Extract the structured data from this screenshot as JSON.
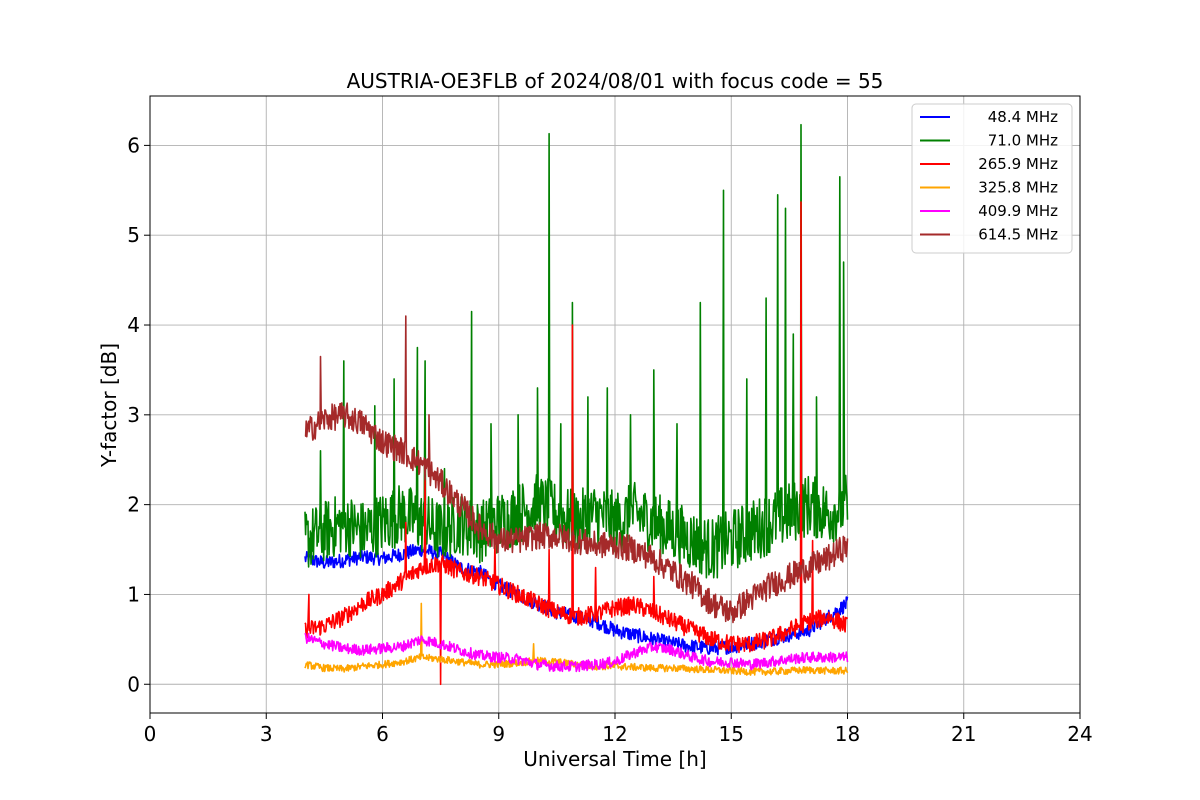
{
  "chart_data": {
    "type": "line",
    "title": "AUSTRIA-OE3FLB of 2024/08/01 with focus code = 55",
    "xlabel": "Universal Time [h]",
    "ylabel": "Y-factor [dB]",
    "xlim": [
      0,
      24
    ],
    "ylim": [
      -0.32,
      6.55
    ],
    "xticks": [
      0,
      3,
      6,
      9,
      12,
      15,
      18,
      21,
      24
    ],
    "yticks": [
      0,
      1,
      2,
      3,
      4,
      5,
      6
    ],
    "grid": true,
    "legend_position": "top-right",
    "series": [
      {
        "name": "48.4 MHz",
        "color": "#0000ff",
        "x": [
          4.0,
          4.5,
          5.0,
          5.5,
          6.0,
          6.5,
          7.0,
          7.5,
          8.0,
          8.5,
          9.0,
          9.5,
          10.0,
          10.5,
          11.0,
          11.5,
          12.0,
          12.5,
          13.0,
          13.5,
          14.0,
          14.5,
          15.0,
          15.5,
          16.0,
          16.5,
          17.0,
          17.5,
          18.0
        ],
        "y": [
          1.4,
          1.35,
          1.38,
          1.42,
          1.4,
          1.45,
          1.5,
          1.45,
          1.3,
          1.25,
          1.1,
          1.0,
          0.9,
          0.8,
          0.75,
          0.7,
          0.6,
          0.55,
          0.5,
          0.45,
          0.42,
          0.4,
          0.42,
          0.45,
          0.5,
          0.55,
          0.6,
          0.75,
          0.9
        ],
        "noise": 0.08
      },
      {
        "name": "71.0 MHz",
        "color": "#008000",
        "x": [
          4.0,
          4.5,
          5.0,
          5.5,
          6.0,
          6.5,
          7.0,
          7.5,
          8.0,
          8.5,
          9.0,
          9.5,
          10.0,
          10.5,
          11.0,
          11.5,
          12.0,
          12.5,
          13.0,
          13.5,
          14.0,
          14.5,
          15.0,
          15.5,
          16.0,
          16.5,
          17.0,
          17.5,
          18.0
        ],
        "y": [
          1.6,
          1.7,
          1.8,
          1.7,
          1.8,
          1.9,
          1.8,
          1.7,
          1.8,
          1.7,
          1.8,
          1.9,
          2.0,
          1.9,
          1.8,
          1.9,
          1.8,
          1.9,
          1.8,
          1.7,
          1.6,
          1.5,
          1.6,
          1.7,
          1.8,
          1.9,
          2.0,
          1.9,
          2.0
        ],
        "noise": 0.35,
        "spikes": [
          [
            4.4,
            2.6
          ],
          [
            5.0,
            3.6
          ],
          [
            5.8,
            3.1
          ],
          [
            6.3,
            3.4
          ],
          [
            6.9,
            3.75
          ],
          [
            7.1,
            3.6
          ],
          [
            7.6,
            2.4
          ],
          [
            8.3,
            4.15
          ],
          [
            8.8,
            2.9
          ],
          [
            9.5,
            3.0
          ],
          [
            10.0,
            3.3
          ],
          [
            10.3,
            6.13
          ],
          [
            10.6,
            2.9
          ],
          [
            10.9,
            4.25
          ],
          [
            11.3,
            3.2
          ],
          [
            11.8,
            3.3
          ],
          [
            12.4,
            3.0
          ],
          [
            13.0,
            3.5
          ],
          [
            13.6,
            2.9
          ],
          [
            14.2,
            4.25
          ],
          [
            14.8,
            5.5
          ],
          [
            15.4,
            3.4
          ],
          [
            15.9,
            4.3
          ],
          [
            16.2,
            5.45
          ],
          [
            16.4,
            5.3
          ],
          [
            16.6,
            3.9
          ],
          [
            16.8,
            6.23
          ],
          [
            17.2,
            3.2
          ],
          [
            17.8,
            5.65
          ],
          [
            17.9,
            4.7
          ]
        ]
      },
      {
        "name": "265.9 MHz",
        "color": "#ff0000",
        "x": [
          4.0,
          4.5,
          5.0,
          5.5,
          6.0,
          6.5,
          7.0,
          7.5,
          8.0,
          8.5,
          9.0,
          9.5,
          10.0,
          10.5,
          11.0,
          11.5,
          12.0,
          12.5,
          13.0,
          13.5,
          14.0,
          14.5,
          15.0,
          15.5,
          16.0,
          16.5,
          17.0,
          17.5,
          18.0
        ],
        "y": [
          0.6,
          0.65,
          0.75,
          0.9,
          1.0,
          1.15,
          1.3,
          1.35,
          1.25,
          1.2,
          1.1,
          1.0,
          0.9,
          0.8,
          0.75,
          0.78,
          0.85,
          0.88,
          0.8,
          0.7,
          0.6,
          0.5,
          0.45,
          0.45,
          0.5,
          0.6,
          0.7,
          0.75,
          0.65
        ],
        "noise": 0.1,
        "spikes": [
          [
            4.1,
            1.0
          ],
          [
            6.6,
            1.8
          ],
          [
            7.1,
            2.3
          ],
          [
            7.5,
            0.0
          ],
          [
            8.9,
            1.6
          ],
          [
            10.3,
            1.5
          ],
          [
            10.9,
            4.0
          ],
          [
            11.5,
            1.3
          ],
          [
            13.0,
            1.2
          ],
          [
            16.8,
            5.37
          ],
          [
            17.1,
            1.6
          ]
        ]
      },
      {
        "name": "325.8 MHz",
        "color": "#ffa500",
        "x": [
          4.0,
          4.5,
          5.0,
          5.5,
          6.0,
          6.5,
          7.0,
          7.5,
          8.0,
          8.5,
          9.0,
          9.5,
          10.0,
          10.5,
          11.0,
          11.5,
          12.0,
          12.5,
          13.0,
          13.5,
          14.0,
          14.5,
          15.0,
          15.5,
          16.0,
          16.5,
          17.0,
          17.5,
          18.0
        ],
        "y": [
          0.22,
          0.18,
          0.17,
          0.2,
          0.22,
          0.25,
          0.3,
          0.28,
          0.25,
          0.22,
          0.22,
          0.24,
          0.26,
          0.25,
          0.22,
          0.2,
          0.2,
          0.19,
          0.18,
          0.18,
          0.17,
          0.16,
          0.15,
          0.14,
          0.14,
          0.15,
          0.16,
          0.15,
          0.15
        ],
        "noise": 0.04,
        "spikes": [
          [
            7.0,
            0.9
          ],
          [
            9.9,
            0.45
          ]
        ]
      },
      {
        "name": "409.9 MHz",
        "color": "#ff00ff",
        "x": [
          4.0,
          4.5,
          5.0,
          5.5,
          6.0,
          6.5,
          7.0,
          7.5,
          8.0,
          8.5,
          9.0,
          9.5,
          10.0,
          10.5,
          11.0,
          11.5,
          12.0,
          12.5,
          13.0,
          13.5,
          14.0,
          14.5,
          15.0,
          15.5,
          16.0,
          16.5,
          17.0,
          17.5,
          18.0
        ],
        "y": [
          0.52,
          0.45,
          0.4,
          0.38,
          0.4,
          0.42,
          0.5,
          0.45,
          0.38,
          0.32,
          0.3,
          0.28,
          0.22,
          0.2,
          0.2,
          0.22,
          0.25,
          0.35,
          0.42,
          0.38,
          0.3,
          0.25,
          0.25,
          0.22,
          0.25,
          0.28,
          0.3,
          0.3,
          0.3
        ],
        "noise": 0.06
      },
      {
        "name": "614.5 MHz",
        "color": "#a52a2a",
        "x": [
          4.0,
          4.5,
          5.0,
          5.5,
          6.0,
          6.5,
          7.0,
          7.5,
          8.0,
          8.5,
          9.0,
          9.5,
          10.0,
          10.5,
          11.0,
          11.5,
          12.0,
          12.5,
          13.0,
          13.5,
          14.0,
          14.5,
          15.0,
          15.5,
          16.0,
          16.5,
          17.0,
          17.5,
          18.0
        ],
        "y": [
          2.8,
          2.95,
          3.0,
          2.9,
          2.7,
          2.6,
          2.45,
          2.25,
          2.0,
          1.75,
          1.6,
          1.6,
          1.65,
          1.65,
          1.6,
          1.55,
          1.55,
          1.5,
          1.4,
          1.25,
          1.1,
          0.9,
          0.8,
          0.95,
          1.1,
          1.2,
          1.3,
          1.4,
          1.55
        ],
        "noise": 0.15,
        "spikes": [
          [
            4.4,
            3.65
          ],
          [
            6.6,
            4.1
          ],
          [
            7.2,
            3.0
          ]
        ]
      }
    ]
  }
}
